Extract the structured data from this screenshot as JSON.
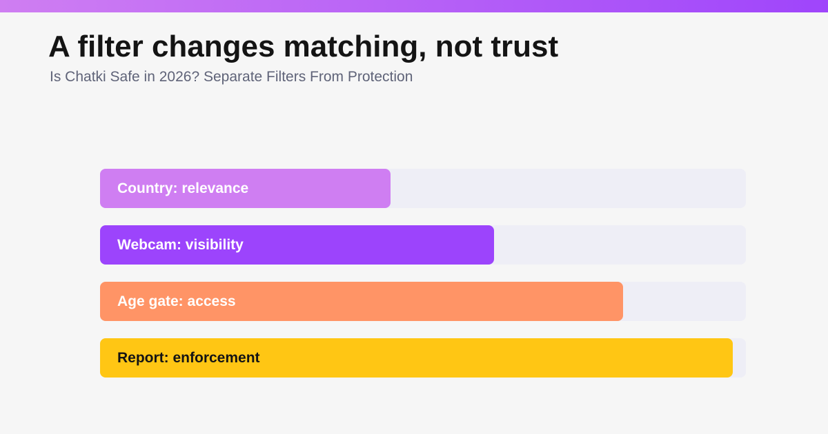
{
  "header": {
    "title": "A filter changes matching, not trust",
    "subtitle": "Is Chatki Safe in 2026? Separate Filters From Protection"
  },
  "colors": {
    "top_bar_start": "#cf7ef2",
    "top_bar_end": "#9f45fb",
    "track": "#eeeef6"
  },
  "chart_data": {
    "type": "bar",
    "orientation": "horizontal",
    "title": "A filter changes matching, not trust",
    "subtitle": "Is Chatki Safe in 2026? Separate Filters From Protection",
    "categories": [
      "Country: relevance",
      "Webcam: visibility",
      "Age gate: access",
      "Report: enforcement"
    ],
    "values": [
      45,
      61,
      81,
      98
    ],
    "xlim": [
      0,
      100
    ],
    "axes_visible": false,
    "grid": false,
    "bars": [
      {
        "label": "Country: relevance",
        "value": 45,
        "color": "#cf7ef2",
        "text_color": "#ffffff"
      },
      {
        "label": "Webcam: visibility",
        "value": 61,
        "color": "#9c44fc",
        "text_color": "#ffffff"
      },
      {
        "label": "Age gate: access",
        "value": 81,
        "color": "#ff9466",
        "text_color": "#ffffff"
      },
      {
        "label": "Report: enforcement",
        "value": 98,
        "color": "#ffc614",
        "text_color": "#141414"
      }
    ]
  }
}
